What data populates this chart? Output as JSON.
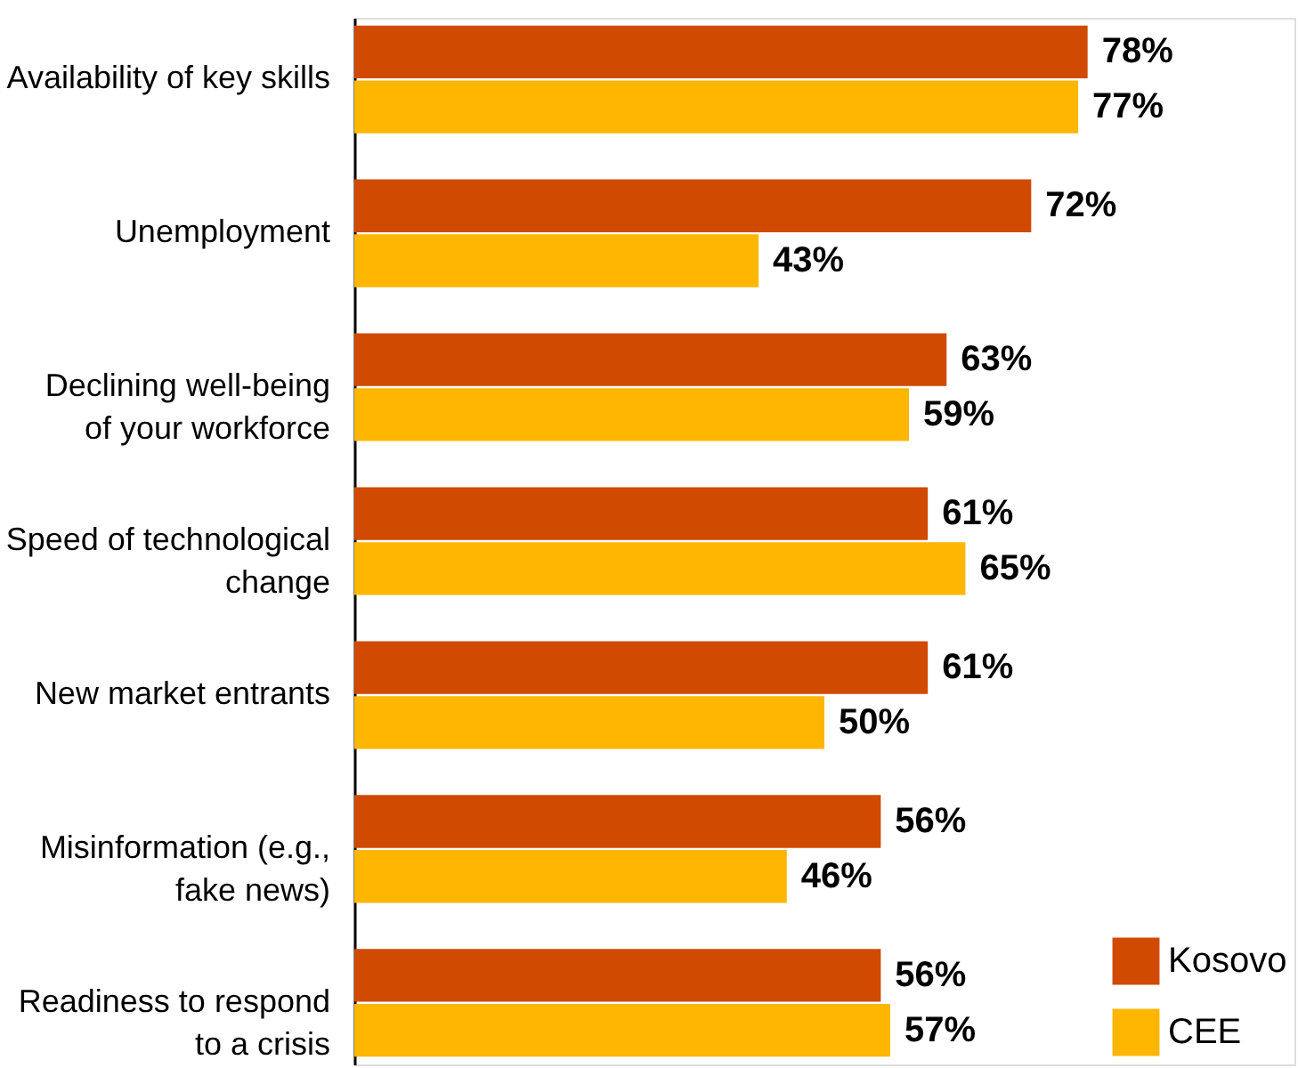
{
  "chart_data": {
    "type": "bar",
    "orientation": "horizontal",
    "categories": [
      "Availability of key skills",
      "Unemployment",
      "Declining well-being \nof your workforce",
      "Speed of technological \nchange",
      "New market entrants",
      "Misinformation (e.g., \nfake news)",
      "Readiness to respond\nto a crisis"
    ],
    "series": [
      {
        "name": "Kosovo",
        "color": "#d04a02",
        "values": [
          78,
          72,
          63,
          61,
          61,
          56,
          56
        ],
        "value_labels": [
          "78%",
          "72%",
          "63%",
          "61%",
          "61%",
          "56%",
          "56%"
        ]
      },
      {
        "name": "CEE",
        "color": "#ffb600",
        "values": [
          77,
          43,
          59,
          65,
          50,
          46,
          57
        ],
        "value_labels": [
          "77%",
          "43%",
          "59%",
          "65%",
          "50%",
          "46%",
          "57%"
        ]
      }
    ],
    "xlim": [
      0,
      100
    ],
    "tick_labels": "y",
    "grid": false,
    "legend": "bottom right"
  }
}
